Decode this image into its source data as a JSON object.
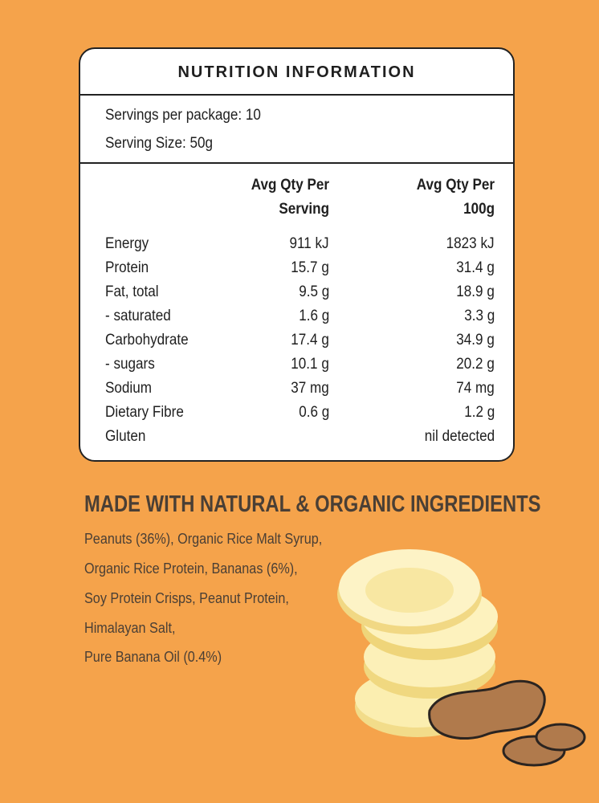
{
  "panel": {
    "title": "NUTRITION INFORMATION",
    "servings_per_package": "Servings per package: 10",
    "serving_size": "Serving Size: 50g",
    "col_serving": [
      "Avg Qty Per",
      "Serving"
    ],
    "col_100g": [
      "Avg Qty Per",
      "100g"
    ],
    "rows": [
      {
        "name": "Energy",
        "serving": "911 kJ",
        "per100": "1823 kJ"
      },
      {
        "name": "Protein",
        "serving": "15.7 g",
        "per100": "31.4 g"
      },
      {
        "name": "Fat, total",
        "serving": "9.5 g",
        "per100": "18.9 g"
      },
      {
        "name": "- saturated",
        "serving": "1.6 g",
        "per100": "3.3 g"
      },
      {
        "name": "Carbohydrate",
        "serving": "17.4 g",
        "per100": "34.9 g"
      },
      {
        "name": "- sugars",
        "serving": "10.1 g",
        "per100": "20.2 g"
      },
      {
        "name": "Sodium",
        "serving": "37 mg",
        "per100": "74 mg"
      },
      {
        "name": "Dietary Fibre",
        "serving": "0.6 g",
        "per100": "1.2 g"
      },
      {
        "name": "Gluten",
        "serving": "",
        "per100": "nil detected"
      }
    ]
  },
  "ingredients": {
    "title": "MADE WITH NATURAL & ORGANIC INGREDIENTS",
    "lines": [
      "Peanuts (36%), Organic Rice Malt Syrup,",
      "Organic Rice Protein, Bananas (6%),",
      "Soy Protein Crisps, Peanut Protein,",
      "Himalayan Salt,",
      "Pure Banana Oil (0.4%)"
    ]
  },
  "colors": {
    "background": "#F5A34B",
    "text_dark": "#4a3f35",
    "panel": "#ffffff"
  }
}
